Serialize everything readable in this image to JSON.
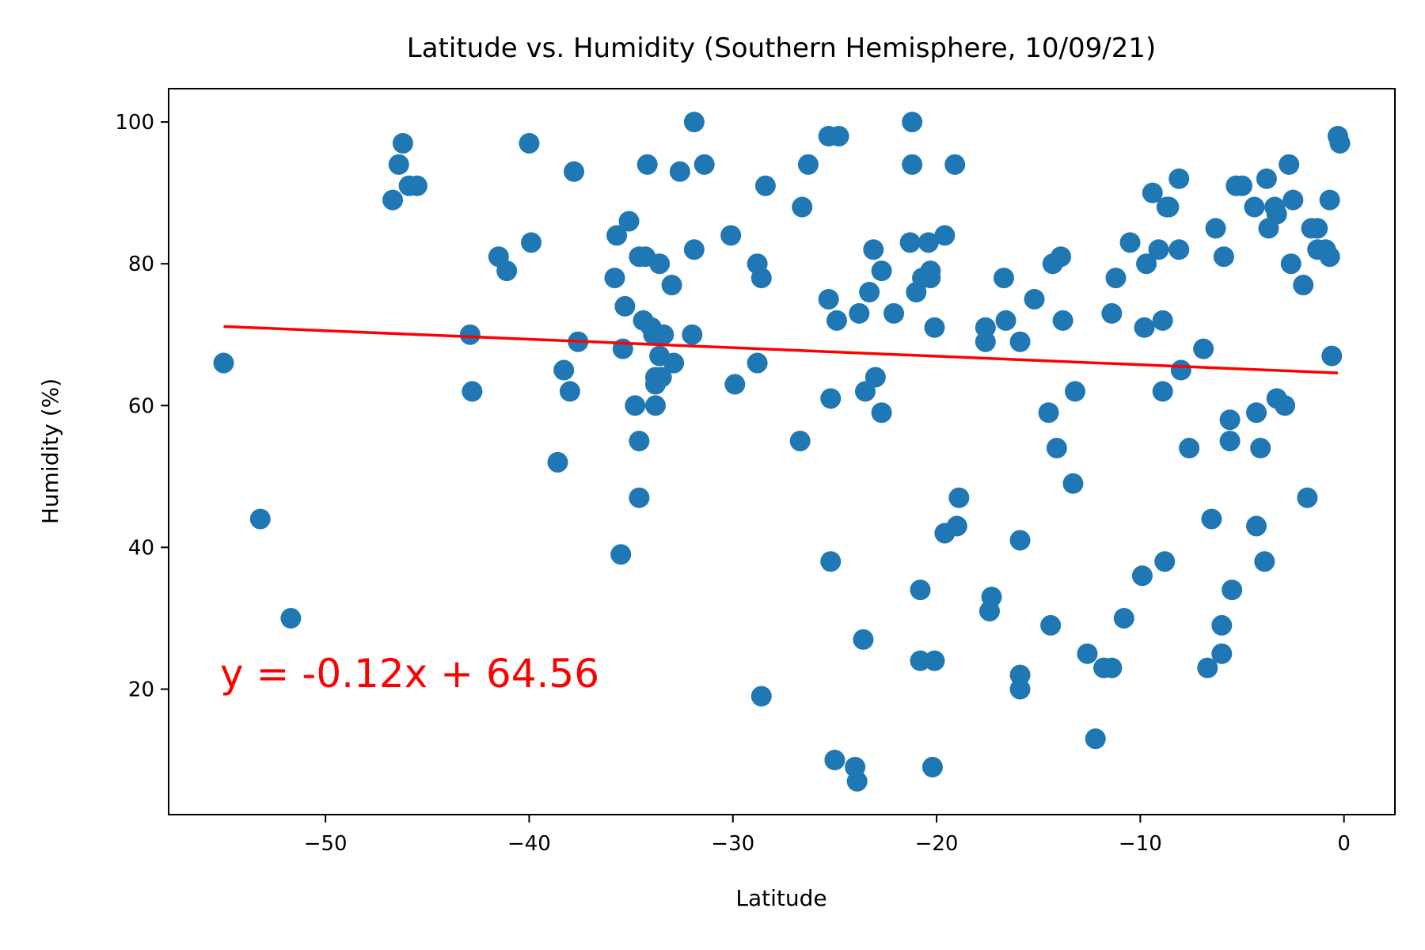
{
  "chart_data": {
    "type": "scatter",
    "title": "Latitude vs. Humidity (Southern Hemisphere, 10/09/21)",
    "xlabel": "Latitude",
    "ylabel": "Humidity (%)",
    "xlim": [
      -57.7,
      2.5
    ],
    "ylim": [
      2.3,
      104.7
    ],
    "xticks": [
      -50,
      -40,
      -30,
      -20,
      -10,
      0
    ],
    "xtick_labels": [
      "−50",
      "−40",
      "−30",
      "−20",
      "−10",
      "0"
    ],
    "yticks": [
      20,
      40,
      60,
      80,
      100
    ],
    "ytick_labels": [
      "20",
      "40",
      "60",
      "80",
      "100"
    ],
    "grid": false,
    "point_color": "#1f77b4",
    "line_color": "#ff0000",
    "regression": {
      "equation": "y = -0.12x + 64.56",
      "slope": -0.12,
      "intercept": 64.56,
      "x_range": [
        -55.0,
        -0.3
      ]
    },
    "points": [
      [
        -55.0,
        66
      ],
      [
        -53.2,
        44
      ],
      [
        -51.7,
        30
      ],
      [
        -46.7,
        89
      ],
      [
        -46.4,
        94
      ],
      [
        -46.2,
        97
      ],
      [
        -45.9,
        91
      ],
      [
        -45.5,
        91
      ],
      [
        -42.9,
        70
      ],
      [
        -42.8,
        62
      ],
      [
        -41.5,
        81
      ],
      [
        -41.1,
        79
      ],
      [
        -40.0,
        97
      ],
      [
        -39.9,
        83
      ],
      [
        -38.6,
        52
      ],
      [
        -38.3,
        65
      ],
      [
        -38.0,
        62
      ],
      [
        -37.8,
        93
      ],
      [
        -37.6,
        69
      ],
      [
        -35.8,
        78
      ],
      [
        -35.7,
        84
      ],
      [
        -35.5,
        39
      ],
      [
        -35.4,
        68
      ],
      [
        -35.3,
        74
      ],
      [
        -35.1,
        86
      ],
      [
        -34.8,
        60
      ],
      [
        -34.6,
        81
      ],
      [
        -34.6,
        55
      ],
      [
        -34.6,
        47
      ],
      [
        -34.4,
        72
      ],
      [
        -34.3,
        81
      ],
      [
        -34.2,
        94
      ],
      [
        -34.0,
        71
      ],
      [
        -33.9,
        70
      ],
      [
        -33.8,
        63
      ],
      [
        -33.8,
        60
      ],
      [
        -33.8,
        64
      ],
      [
        -33.6,
        80
      ],
      [
        -33.6,
        67
      ],
      [
        -33.5,
        64
      ],
      [
        -33.4,
        70
      ],
      [
        -33.0,
        77
      ],
      [
        -32.9,
        66
      ],
      [
        -32.6,
        93
      ],
      [
        -32.0,
        70
      ],
      [
        -31.9,
        82
      ],
      [
        -31.9,
        100
      ],
      [
        -31.4,
        94
      ],
      [
        -30.1,
        84
      ],
      [
        -29.9,
        63
      ],
      [
        -28.8,
        80
      ],
      [
        -28.8,
        66
      ],
      [
        -28.6,
        78
      ],
      [
        -28.6,
        19
      ],
      [
        -28.4,
        91
      ],
      [
        -26.7,
        55
      ],
      [
        -26.6,
        88
      ],
      [
        -26.3,
        94
      ],
      [
        -25.3,
        98
      ],
      [
        -25.3,
        75
      ],
      [
        -25.2,
        38
      ],
      [
        -25.2,
        61
      ],
      [
        -25.0,
        10
      ],
      [
        -24.9,
        72
      ],
      [
        -24.8,
        98
      ],
      [
        -24.0,
        9
      ],
      [
        -23.9,
        7
      ],
      [
        -23.8,
        73
      ],
      [
        -23.6,
        27
      ],
      [
        -23.5,
        62
      ],
      [
        -23.3,
        76
      ],
      [
        -23.1,
        82
      ],
      [
        -23.0,
        64
      ],
      [
        -22.7,
        59
      ],
      [
        -22.7,
        79
      ],
      [
        -22.1,
        73
      ],
      [
        -21.3,
        83
      ],
      [
        -21.2,
        100
      ],
      [
        -21.2,
        94
      ],
      [
        -21.0,
        76
      ],
      [
        -20.8,
        34
      ],
      [
        -20.8,
        24
      ],
      [
        -20.7,
        78
      ],
      [
        -20.4,
        83
      ],
      [
        -20.3,
        79
      ],
      [
        -20.3,
        78
      ],
      [
        -20.2,
        9
      ],
      [
        -20.1,
        24
      ],
      [
        -20.1,
        71
      ],
      [
        -19.6,
        42
      ],
      [
        -19.6,
        84
      ],
      [
        -19.1,
        94
      ],
      [
        -19.0,
        43
      ],
      [
        -18.9,
        47
      ],
      [
        -17.6,
        71
      ],
      [
        -17.6,
        69
      ],
      [
        -17.4,
        31
      ],
      [
        -17.3,
        33
      ],
      [
        -16.7,
        78
      ],
      [
        -16.6,
        72
      ],
      [
        -15.9,
        22
      ],
      [
        -15.9,
        20
      ],
      [
        -15.9,
        41
      ],
      [
        -15.9,
        69
      ],
      [
        -15.2,
        75
      ],
      [
        -14.5,
        59
      ],
      [
        -14.4,
        29
      ],
      [
        -14.3,
        80
      ],
      [
        -14.1,
        54
      ],
      [
        -13.9,
        81
      ],
      [
        -13.8,
        72
      ],
      [
        -13.3,
        49
      ],
      [
        -13.2,
        62
      ],
      [
        -12.6,
        25
      ],
      [
        -12.2,
        13
      ],
      [
        -11.8,
        23
      ],
      [
        -11.4,
        73
      ],
      [
        -11.4,
        23
      ],
      [
        -11.2,
        78
      ],
      [
        -10.8,
        30
      ],
      [
        -10.5,
        83
      ],
      [
        -9.9,
        36
      ],
      [
        -9.8,
        71
      ],
      [
        -9.7,
        80
      ],
      [
        -9.4,
        90
      ],
      [
        -9.1,
        82
      ],
      [
        -8.9,
        62
      ],
      [
        -8.9,
        72
      ],
      [
        -8.8,
        38
      ],
      [
        -8.7,
        88
      ],
      [
        -8.6,
        88
      ],
      [
        -8.1,
        92
      ],
      [
        -8.1,
        82
      ],
      [
        -8.0,
        65
      ],
      [
        -7.6,
        54
      ],
      [
        -6.9,
        68
      ],
      [
        -6.7,
        23
      ],
      [
        -6.5,
        44
      ],
      [
        -6.3,
        85
      ],
      [
        -6.0,
        25
      ],
      [
        -6.0,
        29
      ],
      [
        -5.9,
        81
      ],
      [
        -5.6,
        58
      ],
      [
        -5.6,
        55
      ],
      [
        -5.5,
        34
      ],
      [
        -5.3,
        91
      ],
      [
        -5.0,
        91
      ],
      [
        -4.4,
        88
      ],
      [
        -4.3,
        43
      ],
      [
        -4.3,
        59
      ],
      [
        -4.1,
        54
      ],
      [
        -3.9,
        38
      ],
      [
        -3.8,
        92
      ],
      [
        -3.7,
        85
      ],
      [
        -3.4,
        88
      ],
      [
        -3.3,
        61
      ],
      [
        -3.3,
        87
      ],
      [
        -2.9,
        60
      ],
      [
        -2.7,
        94
      ],
      [
        -2.6,
        80
      ],
      [
        -2.5,
        89
      ],
      [
        -2.0,
        77
      ],
      [
        -1.8,
        47
      ],
      [
        -1.6,
        85
      ],
      [
        -1.3,
        85
      ],
      [
        -1.3,
        82
      ],
      [
        -0.9,
        82
      ],
      [
        -0.7,
        89
      ],
      [
        -0.7,
        81
      ],
      [
        -0.6,
        67
      ],
      [
        -0.3,
        98
      ],
      [
        -0.2,
        97
      ]
    ]
  }
}
